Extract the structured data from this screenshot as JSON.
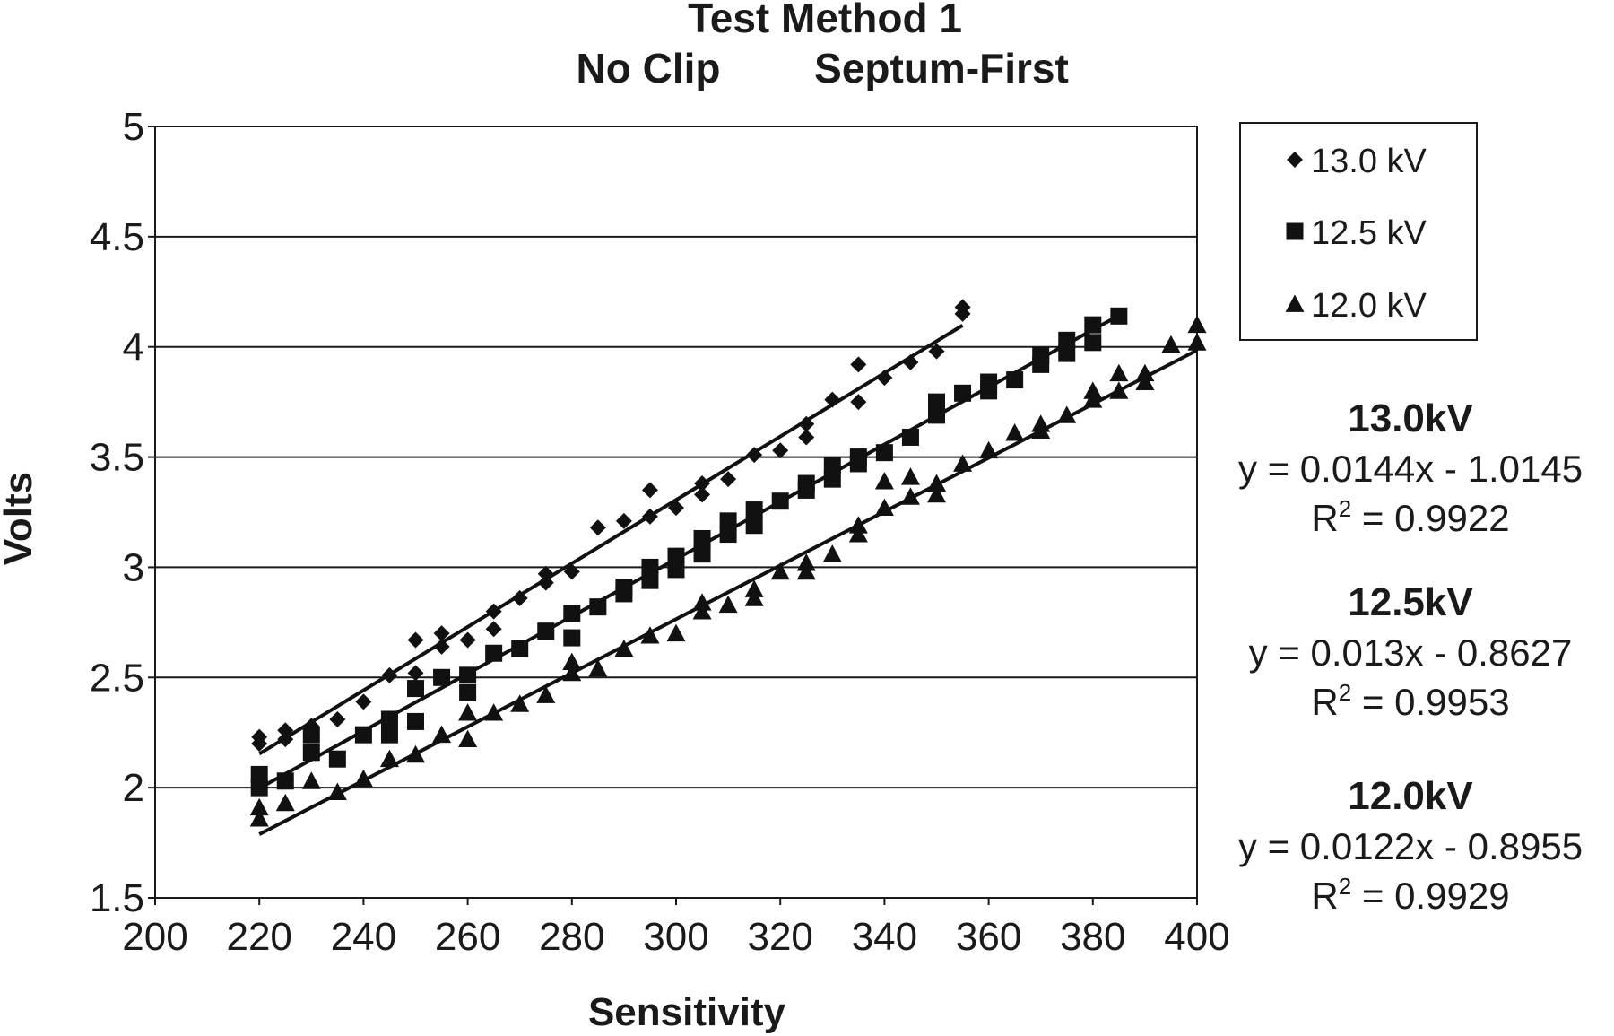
{
  "chart_data": {
    "type": "scatter",
    "title_lines": [
      "Test Method 1",
      "No Clip",
      "Septum-First"
    ],
    "xlabel": "Sensitivity",
    "ylabel": "Volts",
    "xlim": [
      200,
      400
    ],
    "ylim": [
      1.5,
      5
    ],
    "x_ticks": [
      200,
      220,
      240,
      260,
      280,
      300,
      320,
      340,
      360,
      380,
      400
    ],
    "y_ticks": [
      1.5,
      2,
      2.5,
      3,
      3.5,
      4,
      4.5,
      5
    ],
    "y_tick_labels": [
      "1.5",
      "2",
      "2.5",
      "3",
      "3.5",
      "4",
      "4.5",
      "5"
    ],
    "grid": "horizontal",
    "legend_position": "top-right",
    "series": [
      {
        "name": "13.0 kV",
        "marker": "diamond",
        "trend": {
          "slope": 0.0144,
          "intercept": -1.0145,
          "x_range": [
            220,
            355
          ]
        },
        "annotation": {
          "heading": "13.0kV",
          "equation": "y = 0.0144x - 1.0145",
          "r2_prefix": "R",
          "r2_sup": "2",
          "r2_value": " = 0.9922"
        },
        "points": [
          [
            220,
            2.23
          ],
          [
            220,
            2.2
          ],
          [
            225,
            2.26
          ],
          [
            225,
            2.22
          ],
          [
            230,
            2.28
          ],
          [
            230,
            2.25
          ],
          [
            235,
            2.31
          ],
          [
            240,
            2.39
          ],
          [
            245,
            2.51
          ],
          [
            250,
            2.67
          ],
          [
            250,
            2.52
          ],
          [
            255,
            2.7
          ],
          [
            255,
            2.64
          ],
          [
            260,
            2.67
          ],
          [
            265,
            2.8
          ],
          [
            265,
            2.72
          ],
          [
            270,
            2.86
          ],
          [
            275,
            2.97
          ],
          [
            275,
            2.93
          ],
          [
            280,
            2.98
          ],
          [
            285,
            3.18
          ],
          [
            290,
            3.21
          ],
          [
            295,
            3.35
          ],
          [
            295,
            3.23
          ],
          [
            300,
            3.27
          ],
          [
            305,
            3.38
          ],
          [
            305,
            3.33
          ],
          [
            310,
            3.4
          ],
          [
            315,
            3.51
          ],
          [
            320,
            3.53
          ],
          [
            325,
            3.65
          ],
          [
            325,
            3.59
          ],
          [
            330,
            3.76
          ],
          [
            335,
            3.92
          ],
          [
            335,
            3.75
          ],
          [
            340,
            3.86
          ],
          [
            345,
            3.93
          ],
          [
            350,
            3.98
          ],
          [
            355,
            4.18
          ],
          [
            355,
            4.15
          ]
        ]
      },
      {
        "name": "12.5 kV",
        "marker": "square",
        "trend": {
          "slope": 0.013,
          "intercept": -0.8627,
          "x_range": [
            220,
            385
          ]
        },
        "annotation": {
          "heading": "12.5kV",
          "equation": "y = 0.013x - 0.8627",
          "r2_prefix": "R",
          "r2_sup": "2",
          "r2_value": " = 0.9953"
        },
        "points": [
          [
            220,
            2.06
          ],
          [
            220,
            2.0
          ],
          [
            225,
            2.03
          ],
          [
            230,
            2.24
          ],
          [
            230,
            2.16
          ],
          [
            235,
            2.13
          ],
          [
            240,
            2.24
          ],
          [
            245,
            2.31
          ],
          [
            245,
            2.24
          ],
          [
            250,
            2.45
          ],
          [
            250,
            2.3
          ],
          [
            255,
            2.5
          ],
          [
            260,
            2.51
          ],
          [
            260,
            2.43
          ],
          [
            265,
            2.61
          ],
          [
            270,
            2.63
          ],
          [
            275,
            2.71
          ],
          [
            280,
            2.79
          ],
          [
            280,
            2.68
          ],
          [
            285,
            2.82
          ],
          [
            290,
            2.91
          ],
          [
            290,
            2.88
          ],
          [
            295,
            3.0
          ],
          [
            295,
            2.94
          ],
          [
            300,
            3.05
          ],
          [
            300,
            2.99
          ],
          [
            305,
            3.13
          ],
          [
            305,
            3.06
          ],
          [
            310,
            3.21
          ],
          [
            310,
            3.15
          ],
          [
            315,
            3.26
          ],
          [
            315,
            3.19
          ],
          [
            320,
            3.3
          ],
          [
            325,
            3.38
          ],
          [
            325,
            3.35
          ],
          [
            330,
            3.46
          ],
          [
            330,
            3.4
          ],
          [
            335,
            3.5
          ],
          [
            335,
            3.47
          ],
          [
            340,
            3.52
          ],
          [
            345,
            3.59
          ],
          [
            350,
            3.75
          ],
          [
            350,
            3.69
          ],
          [
            355,
            3.79
          ],
          [
            360,
            3.84
          ],
          [
            360,
            3.8
          ],
          [
            365,
            3.85
          ],
          [
            370,
            3.96
          ],
          [
            370,
            3.92
          ],
          [
            375,
            4.03
          ],
          [
            375,
            3.97
          ],
          [
            380,
            4.1
          ],
          [
            380,
            4.02
          ],
          [
            385,
            4.14
          ]
        ]
      },
      {
        "name": "12.0 kV",
        "marker": "triangle",
        "trend": {
          "slope": 0.0122,
          "intercept": -0.8955,
          "x_range": [
            220,
            400
          ]
        },
        "annotation": {
          "heading": "12.0kV",
          "equation": "y = 0.0122x - 0.8955",
          "r2_prefix": "R",
          "r2_sup": "2",
          "r2_value": " = 0.9929"
        },
        "points": [
          [
            220,
            1.91
          ],
          [
            220,
            1.86
          ],
          [
            225,
            1.93
          ],
          [
            230,
            2.03
          ],
          [
            235,
            1.98
          ],
          [
            240,
            2.04
          ],
          [
            245,
            2.13
          ],
          [
            250,
            2.15
          ],
          [
            255,
            2.24
          ],
          [
            260,
            2.34
          ],
          [
            260,
            2.22
          ],
          [
            265,
            2.34
          ],
          [
            270,
            2.38
          ],
          [
            275,
            2.42
          ],
          [
            280,
            2.57
          ],
          [
            280,
            2.52
          ],
          [
            285,
            2.54
          ],
          [
            290,
            2.63
          ],
          [
            295,
            2.69
          ],
          [
            300,
            2.7
          ],
          [
            305,
            2.84
          ],
          [
            305,
            2.8
          ],
          [
            310,
            2.83
          ],
          [
            315,
            2.9
          ],
          [
            315,
            2.86
          ],
          [
            320,
            2.98
          ],
          [
            325,
            2.98
          ],
          [
            325,
            3.02
          ],
          [
            330,
            3.06
          ],
          [
            335,
            3.19
          ],
          [
            335,
            3.15
          ],
          [
            340,
            3.39
          ],
          [
            340,
            3.27
          ],
          [
            345,
            3.41
          ],
          [
            345,
            3.32
          ],
          [
            350,
            3.33
          ],
          [
            350,
            3.38
          ],
          [
            355,
            3.47
          ],
          [
            360,
            3.53
          ],
          [
            365,
            3.61
          ],
          [
            370,
            3.65
          ],
          [
            370,
            3.62
          ],
          [
            375,
            3.69
          ],
          [
            380,
            3.8
          ],
          [
            380,
            3.76
          ],
          [
            385,
            3.88
          ],
          [
            385,
            3.8
          ],
          [
            390,
            3.88
          ],
          [
            390,
            3.84
          ],
          [
            395,
            4.01
          ],
          [
            400,
            4.1
          ],
          [
            400,
            4.02
          ]
        ]
      }
    ]
  }
}
